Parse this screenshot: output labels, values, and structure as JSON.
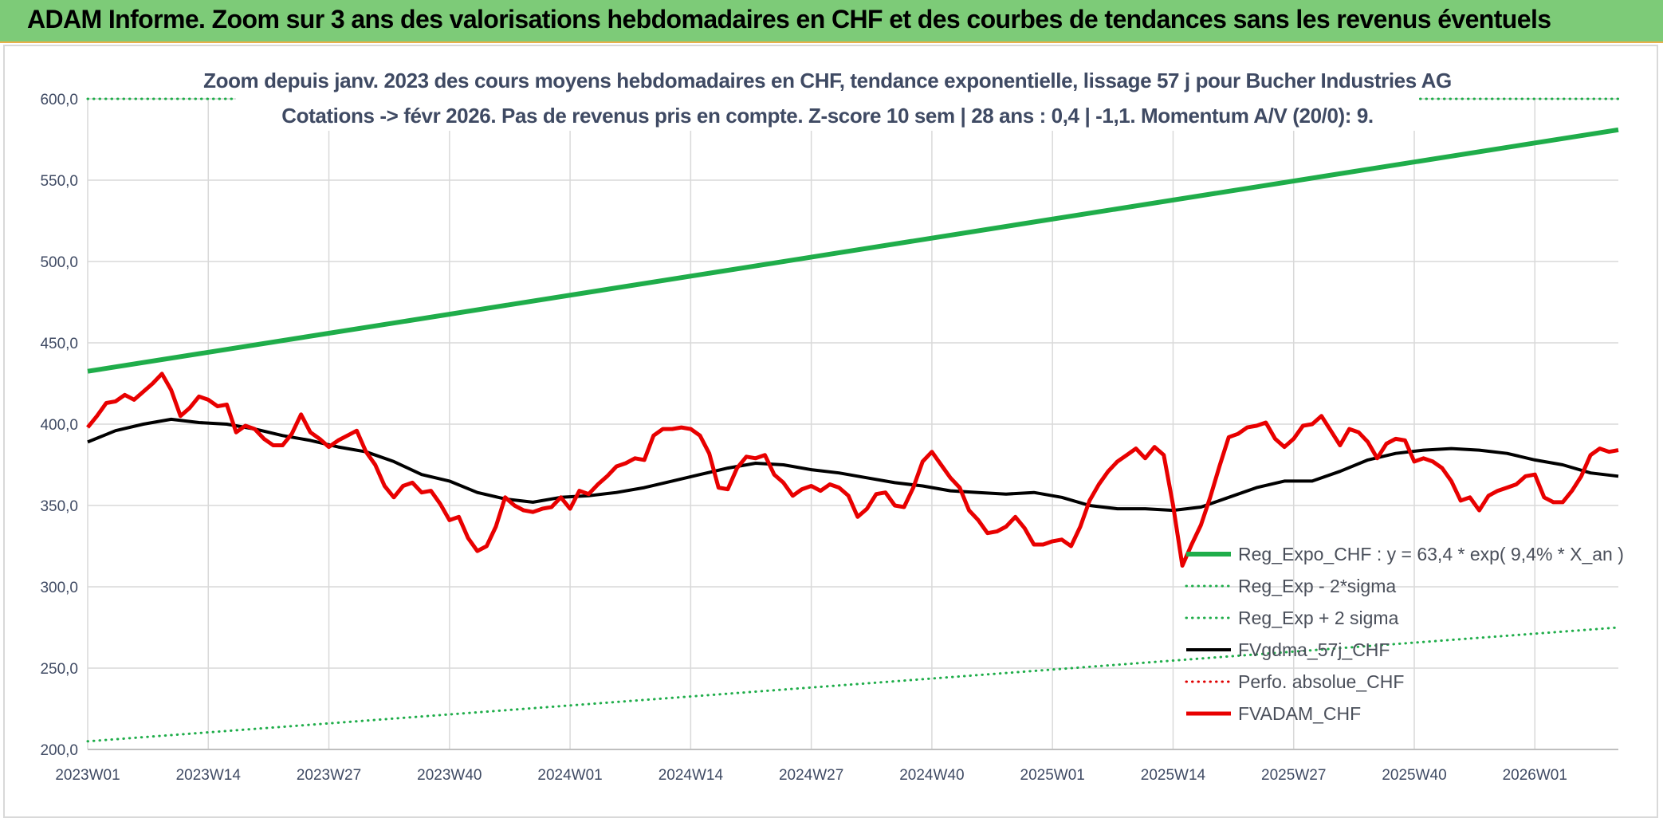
{
  "banner": {
    "title": "ADAM Informe. Zoom sur 3 ans des valorisations hebdomadaires en CHF et des courbes de tendances sans les revenus éventuels"
  },
  "chart_data": {
    "type": "line",
    "title_line1": "Zoom depuis janv. 2023 des cours moyens hebdomadaires en CHF, tendance exponentielle, lissage 57 j pour Bucher Industries AG",
    "title_line2": "Cotations -> févr 2026. Pas de revenus pris en compte. Z-score 10 sem | 28 ans : 0,4 | -1,1. Momentum A/V (20/0): 9.",
    "xlabel": "",
    "ylabel": "",
    "ylim": [
      200,
      600
    ],
    "yticks": [
      "200,0",
      "250,0",
      "300,0",
      "350,0",
      "400,0",
      "450,0",
      "500,0",
      "550,0",
      "600,0"
    ],
    "xticks": [
      "2023W01",
      "2023W14",
      "2023W27",
      "2023W40",
      "2024W01",
      "2024W14",
      "2024W27",
      "2024W40",
      "2025W01",
      "2025W14",
      "2025W27",
      "2025W40",
      "2026W01"
    ],
    "week_count": 166,
    "legend": [
      {
        "key": "reg_expo",
        "label": "Reg_Expo_CHF : y = 63,4 * exp( 9,4% *  X_an )",
        "color": "#1fad4a",
        "style": "solid",
        "width": 6
      },
      {
        "key": "reg_minus",
        "label": "Reg_Exp - 2*sigma",
        "color": "#1fad4a",
        "style": "dotted",
        "width": 3
      },
      {
        "key": "reg_plus",
        "label": "Reg_Exp + 2 sigma",
        "color": "#1fad4a",
        "style": "dotted",
        "width": 3
      },
      {
        "key": "fvgdma",
        "label": "FVgdma_57j_CHF",
        "color": "#000000",
        "style": "solid",
        "width": 4
      },
      {
        "key": "perfo",
        "label": "Perfo. absolue_CHF",
        "color": "#e00000",
        "style": "dotted",
        "width": 3
      },
      {
        "key": "fvadam",
        "label": "FVADAM_CHF",
        "color": "#e80000",
        "style": "solid",
        "width": 5
      }
    ],
    "series": [
      {
        "name": "Reg_Expo_CHF",
        "key": "reg_expo",
        "x": [
          0,
          165
        ],
        "values": [
          432.5,
          581
        ]
      },
      {
        "name": "Reg_Exp - 2*sigma",
        "key": "reg_minus",
        "x": [
          0,
          165
        ],
        "values": [
          205,
          275
        ]
      },
      {
        "name": "Reg_Exp + 2 sigma",
        "key": "reg_plus",
        "x": [
          0,
          17,
          143,
          165
        ],
        "values": [
          600,
          600,
          600,
          600
        ],
        "segments": [
          [
            0,
            1
          ],
          [
            2,
            3
          ]
        ]
      },
      {
        "name": "FVgdma_57j_CHF",
        "key": "fvgdma",
        "x": [
          0,
          3,
          6,
          9,
          12,
          15,
          18,
          21,
          24,
          27,
          30,
          33,
          36,
          39,
          42,
          45,
          48,
          51,
          54,
          57,
          60,
          63,
          66,
          69,
          72,
          75,
          78,
          81,
          84,
          87,
          90,
          93,
          96,
          99,
          102,
          105,
          108,
          111,
          114,
          117,
          120,
          123,
          126,
          129,
          132,
          135,
          138,
          141,
          144,
          147,
          150,
          153,
          156,
          159,
          162,
          165
        ],
        "values": [
          389,
          396,
          400,
          403,
          401,
          400,
          397,
          393,
          390,
          386,
          383,
          377,
          369,
          365,
          358,
          354,
          352,
          355,
          356,
          358,
          361,
          365,
          369,
          373,
          376,
          375,
          372,
          370,
          367,
          364,
          362,
          359,
          358,
          357,
          358,
          355,
          350,
          348,
          348,
          347,
          349,
          355,
          361,
          365,
          365,
          371,
          378,
          382,
          384,
          385,
          384,
          382,
          378,
          375,
          370,
          368
        ]
      },
      {
        "name": "FVADAM_CHF",
        "key": "fvadam",
        "x": [
          0,
          1,
          2,
          3,
          4,
          5,
          6,
          7,
          8,
          9,
          10,
          11,
          12,
          13,
          14,
          15,
          16,
          17,
          18,
          19,
          20,
          21,
          22,
          23,
          24,
          25,
          26,
          27,
          28,
          29,
          30,
          31,
          32,
          33,
          34,
          35,
          36,
          37,
          38,
          39,
          40,
          41,
          42,
          43,
          44,
          45,
          46,
          47,
          48,
          49,
          50,
          51,
          52,
          53,
          54,
          55,
          56,
          57,
          58,
          59,
          60,
          61,
          62,
          63,
          64,
          65,
          66,
          67,
          68,
          69,
          70,
          71,
          72,
          73,
          74,
          75,
          76,
          77,
          78,
          79,
          80,
          81,
          82,
          83,
          84,
          85,
          86,
          87,
          88,
          89,
          90,
          91,
          92,
          93,
          94,
          95,
          96,
          97,
          98,
          99,
          100,
          101,
          102,
          103,
          104,
          105,
          106,
          107,
          108,
          109,
          110,
          111,
          112,
          113,
          114,
          115,
          116,
          117,
          118,
          119,
          120,
          121,
          122,
          123,
          124,
          125,
          126,
          127,
          128,
          129,
          130,
          131,
          132,
          133,
          134,
          135,
          136,
          137,
          138,
          139,
          140,
          141,
          142,
          143,
          144,
          145,
          146,
          147,
          148,
          149,
          150,
          151,
          152,
          153,
          154,
          155,
          156,
          157,
          158,
          159,
          160,
          161,
          162,
          163,
          164,
          165
        ],
        "values": [
          398,
          405,
          413,
          414,
          418,
          415,
          420,
          425,
          431,
          421,
          405,
          410,
          417,
          415,
          411,
          412,
          395,
          399,
          397,
          391,
          387,
          387,
          394,
          406,
          395,
          391,
          386,
          390,
          393,
          396,
          383,
          375,
          362,
          355,
          362,
          364,
          358,
          359,
          351,
          341,
          343,
          330,
          322,
          325,
          337,
          355,
          350,
          347,
          346,
          348,
          349,
          355,
          348,
          359,
          357,
          363,
          368,
          374,
          376,
          379,
          378,
          393,
          397,
          397,
          398,
          397,
          393,
          382,
          361,
          360,
          373,
          380,
          379,
          381,
          369,
          364,
          356,
          360,
          362,
          359,
          363,
          361,
          356,
          343,
          348,
          357,
          358,
          350,
          349,
          361,
          377,
          383,
          375,
          367,
          361,
          347,
          341,
          333,
          334,
          337,
          343,
          336,
          326,
          326,
          328,
          329,
          325,
          337,
          353,
          363,
          371,
          377,
          381,
          385,
          379,
          386,
          381,
          350,
          313,
          326,
          338,
          355,
          374,
          392,
          394,
          398,
          399,
          401,
          391,
          386,
          391,
          399,
          400,
          405,
          396,
          387,
          397,
          395,
          389,
          379,
          388,
          391,
          390,
          377,
          379,
          377,
          373,
          365,
          353,
          355,
          347,
          356,
          359,
          361,
          363,
          368,
          369,
          355,
          352,
          352,
          359,
          368,
          381,
          385,
          383,
          384
        ]
      }
    ]
  }
}
